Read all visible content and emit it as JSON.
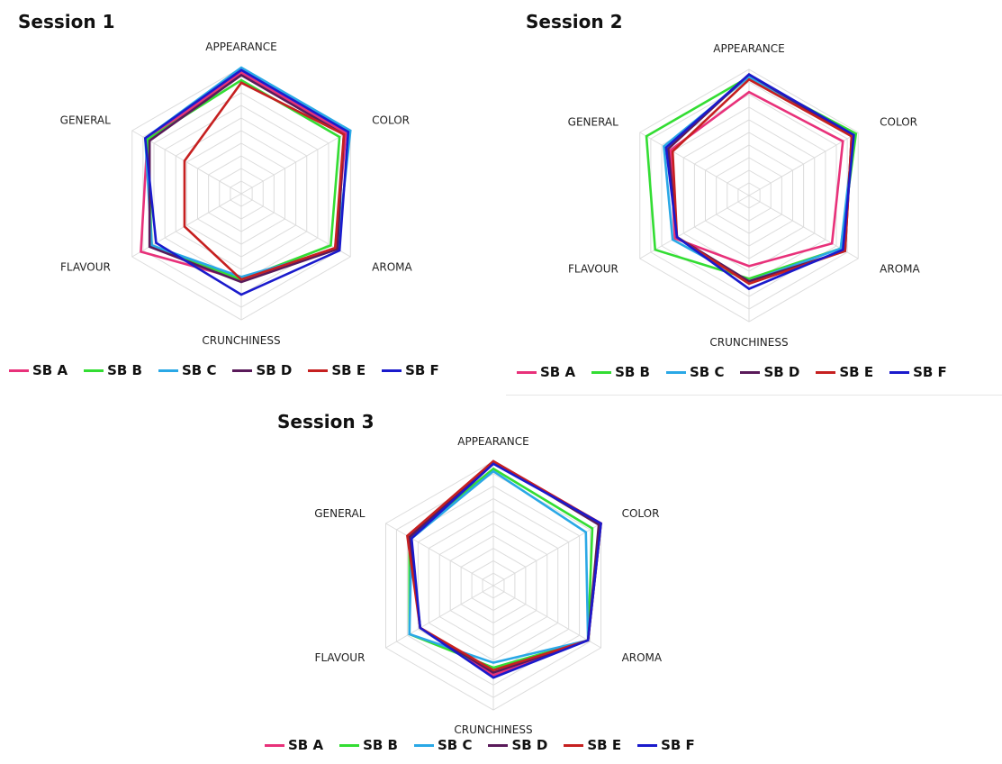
{
  "chart_data": [
    {
      "type": "radar",
      "title": "Session 1",
      "axes": [
        "APPEARANCE",
        "COLOR",
        "AROMA",
        "CRUNCHINESS",
        "FLAVOUR",
        "GENERAL"
      ],
      "rlim": [
        0,
        10
      ],
      "grid": true,
      "legend_position": "bottom",
      "series": [
        {
          "name": "SB A",
          "color": "#e8317a",
          "values": [
            9.6,
            9.6,
            8.6,
            6.8,
            9.2,
            8.6
          ]
        },
        {
          "name": "SB B",
          "color": "#33dd33",
          "values": [
            9.0,
            9.0,
            8.2,
            6.8,
            8.2,
            8.6
          ]
        },
        {
          "name": "SB C",
          "color": "#2aa8e6",
          "values": [
            10.0,
            10.0,
            8.8,
            6.6,
            8.2,
            8.8
          ]
        },
        {
          "name": "SB D",
          "color": "#5a1a5a",
          "values": [
            9.4,
            9.4,
            8.8,
            7.0,
            8.4,
            8.4
          ]
        },
        {
          "name": "SB E",
          "color": "#c62020",
          "values": [
            8.8,
            9.4,
            8.6,
            6.8,
            5.2,
            5.2
          ]
        },
        {
          "name": "SB F",
          "color": "#1a1acc",
          "values": [
            9.8,
            9.8,
            9.0,
            8.0,
            7.8,
            8.8
          ]
        }
      ]
    },
    {
      "type": "radar",
      "title": "Session 2",
      "axes": [
        "APPEARANCE",
        "COLOR",
        "AROMA",
        "CRUNCHINESS",
        "FLAVOUR",
        "GENERAL"
      ],
      "rlim": [
        0,
        10
      ],
      "grid": true,
      "legend_position": "bottom",
      "series": [
        {
          "name": "SB A",
          "color": "#e8317a",
          "values": [
            8.2,
            8.6,
            7.6,
            5.6,
            6.8,
            7.2
          ]
        },
        {
          "name": "SB B",
          "color": "#33dd33",
          "values": [
            9.4,
            9.8,
            8.4,
            6.6,
            8.6,
            9.4
          ]
        },
        {
          "name": "SB C",
          "color": "#2aa8e6",
          "values": [
            9.4,
            9.6,
            8.4,
            6.8,
            7.0,
            7.8
          ]
        },
        {
          "name": "SB D",
          "color": "#5a1a5a",
          "values": [
            9.6,
            9.4,
            8.8,
            6.8,
            6.6,
            7.4
          ]
        },
        {
          "name": "SB E",
          "color": "#c62020",
          "values": [
            9.2,
            9.4,
            8.8,
            7.0,
            6.6,
            7.0
          ]
        },
        {
          "name": "SB F",
          "color": "#1a1acc",
          "values": [
            9.6,
            9.6,
            8.6,
            7.4,
            6.6,
            7.6
          ]
        }
      ]
    },
    {
      "type": "radar",
      "title": "Session 3",
      "axes": [
        "APPEARANCE",
        "COLOR",
        "AROMA",
        "CRUNCHINESS",
        "FLAVOUR",
        "GENERAL"
      ],
      "rlim": [
        0,
        10
      ],
      "grid": true,
      "legend_position": "bottom",
      "series": [
        {
          "name": "SB A",
          "color": "#e8317a",
          "values": [
            10.0,
            10.0,
            8.8,
            7.2,
            6.8,
            7.8
          ]
        },
        {
          "name": "SB B",
          "color": "#33dd33",
          "values": [
            9.4,
            9.2,
            8.8,
            6.6,
            7.8,
            7.8
          ]
        },
        {
          "name": "SB C",
          "color": "#2aa8e6",
          "values": [
            9.2,
            8.6,
            8.8,
            6.2,
            7.8,
            7.6
          ]
        },
        {
          "name": "SB D",
          "color": "#5a1a5a",
          "values": [
            10.0,
            9.8,
            8.8,
            7.0,
            6.8,
            7.8
          ]
        },
        {
          "name": "SB E",
          "color": "#c62020",
          "values": [
            10.0,
            10.0,
            8.8,
            6.8,
            6.8,
            8.0
          ]
        },
        {
          "name": "SB F",
          "color": "#1a1acc",
          "values": [
            9.8,
            10.0,
            8.8,
            7.4,
            6.8,
            7.6
          ]
        }
      ]
    }
  ]
}
